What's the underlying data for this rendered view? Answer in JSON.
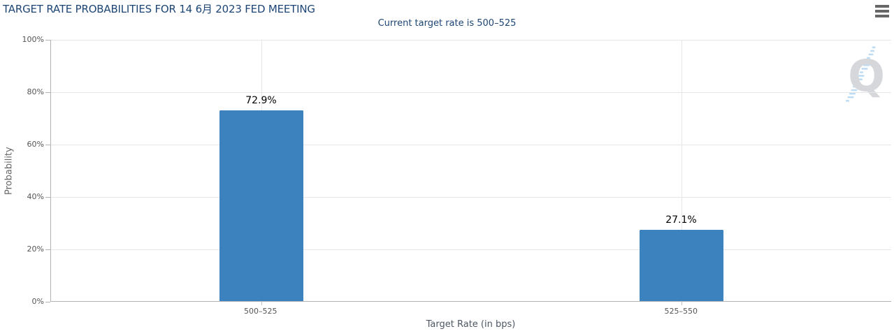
{
  "toolbar": {
    "menu_icon": "hamburger-menu-icon"
  },
  "chart_data": {
    "type": "bar",
    "title": "TARGET RATE PROBABILITIES FOR 14 6月 2023 FED MEETING",
    "subtitle": "Current target rate is 500–525",
    "categories": [
      "500–525",
      "525–550"
    ],
    "values": [
      72.9,
      27.1
    ],
    "value_labels": [
      "72.9%",
      "27.1%"
    ],
    "xlabel": "Target Rate (in bps)",
    "ylabel": "Probability",
    "ylim": [
      0,
      100
    ],
    "ytick_interval": 20,
    "ytick_labels": [
      "0%",
      "20%",
      "40%",
      "60%",
      "80%",
      "100%"
    ],
    "grid": true,
    "legend": "none",
    "watermark_icon": "q-logo-watermark"
  },
  "colors": {
    "title": "#1d4574",
    "subtitle": "#1d4574",
    "bar": "#3c82be",
    "gridline": "#e6e6e6",
    "axis_line": "#b2b2b2",
    "tick_label": "#555555",
    "data_label": "#000000",
    "x_axis_title": "#4d5663",
    "y_axis_title": "#666666",
    "menu_icon": "#666666",
    "watermark_q": "#d5d7da",
    "watermark_dash": "#bfdcf5"
  }
}
